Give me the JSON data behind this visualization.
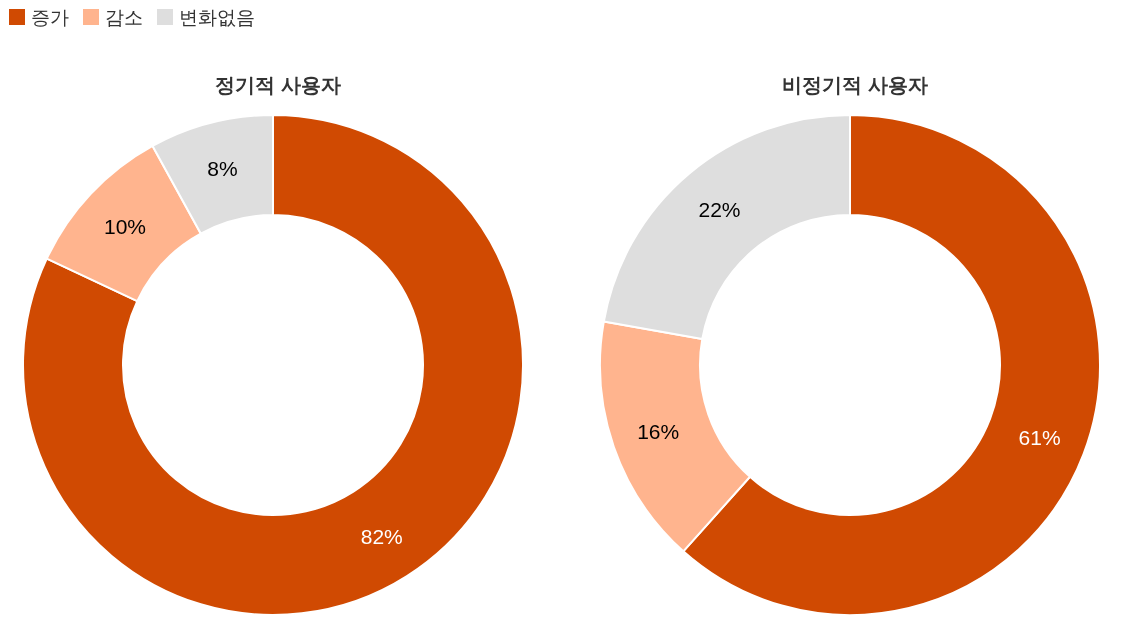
{
  "chart_data": [
    {
      "type": "donut",
      "title": "정기적 사용자",
      "categories": [
        "증가",
        "감소",
        "변화없음"
      ],
      "values": [
        82,
        10,
        8
      ],
      "value_labels": [
        "82%",
        "10%",
        "8%"
      ],
      "colors": [
        "#d04a02",
        "#ffb48e",
        "#dedede"
      ],
      "legend": "top left"
    },
    {
      "type": "donut",
      "title": "비정기적 사용자",
      "categories": [
        null,
        null,
        null
      ],
      "values": [
        61,
        16,
        22
      ],
      "value_labels": [
        "61%",
        "16%",
        "22%"
      ],
      "colors": [
        "#d04a02",
        "#ffb48e",
        "#dedede"
      ]
    }
  ]
}
